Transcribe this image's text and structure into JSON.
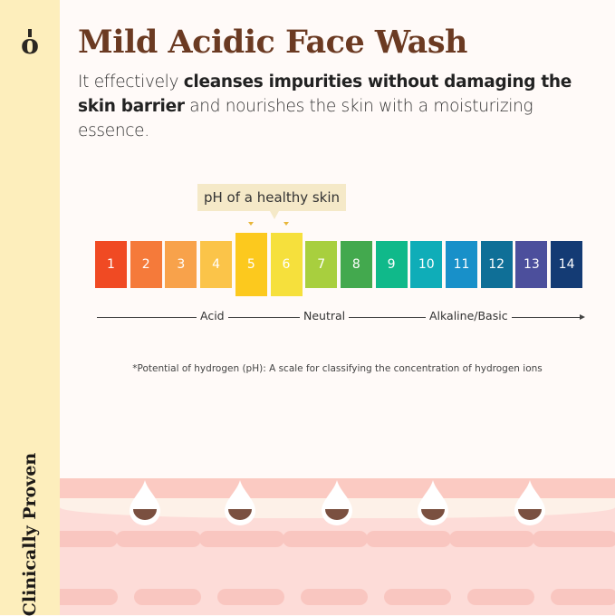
{
  "brand": {
    "logo": "o",
    "tagline": "Clinically Proven"
  },
  "header": {
    "title": "Mild Acidic Face Wash",
    "subtitle": {
      "p1": "It effectively ",
      "b1": "cleanses impurities without damaging the skin barrier",
      "p2": " and nourishes the skin with a moisturizing essence."
    }
  },
  "ph_scale": {
    "callout": "pH of a healthy skin",
    "highlighted": [
      5,
      6
    ],
    "levels": [
      {
        "label": "1",
        "color": "#f04a23"
      },
      {
        "label": "2",
        "color": "#f57a3a"
      },
      {
        "label": "3",
        "color": "#f8a24b"
      },
      {
        "label": "4",
        "color": "#fbc449"
      },
      {
        "label": "5",
        "color": "#fcc91e"
      },
      {
        "label": "6",
        "color": "#f6e03c"
      },
      {
        "label": "7",
        "color": "#a8cf3e"
      },
      {
        "label": "8",
        "color": "#43a94e"
      },
      {
        "label": "9",
        "color": "#10b98a"
      },
      {
        "label": "10",
        "color": "#0fadb8"
      },
      {
        "label": "11",
        "color": "#1890c9"
      },
      {
        "label": "12",
        "color": "#0f6f97"
      },
      {
        "label": "13",
        "color": "#4c4f9c"
      },
      {
        "label": "14",
        "color": "#143b74"
      }
    ],
    "axis_labels": [
      "Acid",
      "Neutral",
      "Alkaline/Basic"
    ]
  },
  "footnote": "*Potential of hydrogen (pH): A scale for classifying the concentration of hydrogen ions"
}
